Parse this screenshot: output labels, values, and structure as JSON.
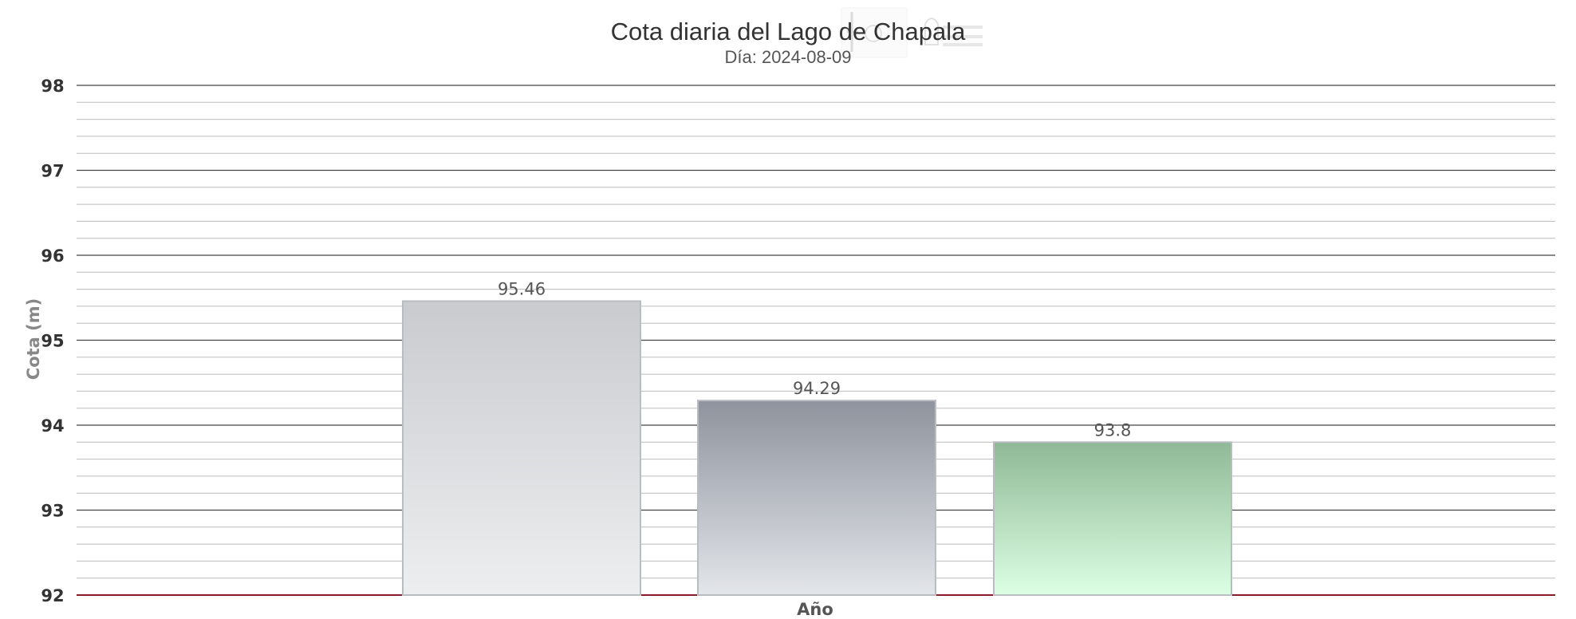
{
  "chart_data": {
    "type": "bar",
    "title": "Cota diaria del Lago de Chapala",
    "subtitle": "Día: 2024-08-09",
    "xlabel": "Año",
    "ylabel": "Cota (m)",
    "ylim": [
      92,
      98
    ],
    "yticks": [
      "92",
      "93",
      "94",
      "95",
      "96",
      "97",
      "98"
    ],
    "minor_grid_step": 0.2,
    "grid": true,
    "series": [
      {
        "label": "95.46",
        "value": 95.46,
        "color_top": "#c9cbcf",
        "color_bottom": "#eceeef"
      },
      {
        "label": "94.29",
        "value": 94.29,
        "color_top": "#8e939d",
        "color_bottom": "#e3e6ea"
      },
      {
        "label": "93.8",
        "value": 93.8,
        "color_top": "#8fb996",
        "color_bottom": "#dcffe4"
      }
    ],
    "colors": {
      "major_grid": "#444444",
      "minor_grid": "#bbbbbb",
      "baseline": "#8b1a2b"
    }
  }
}
